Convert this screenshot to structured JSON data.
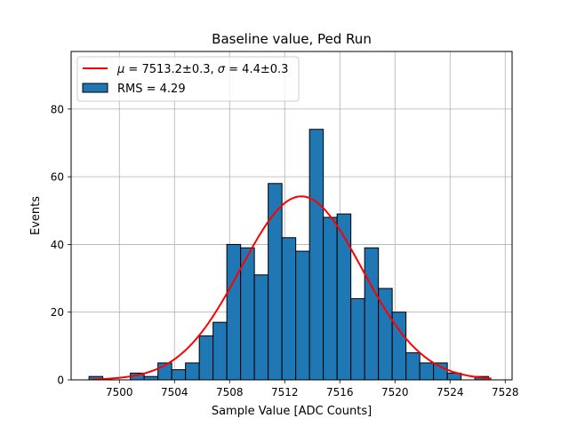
{
  "chart_data": {
    "type": "bar",
    "title": "Baseline value, Ped Run",
    "xlabel": "Sample Value [ADC Counts]",
    "ylabel": "Events",
    "xlim": [
      7496.5,
      7528.5
    ],
    "ylim": [
      0,
      97
    ],
    "xticks": [
      7500,
      7504,
      7508,
      7512,
      7516,
      7520,
      7524,
      7528
    ],
    "yticks": [
      0,
      20,
      40,
      60,
      80
    ],
    "grid": true,
    "legend_position": "top-left",
    "colors": {
      "bars": "#1f77b4",
      "bar_edge": "#000000",
      "fit": "#ff0000",
      "grid": "#b0b0b0"
    },
    "histogram": {
      "name": "RMS = 4.29",
      "bin_width": 1.0,
      "bin_left_edges": [
        7497.8,
        7498.8,
        7499.8,
        7500.8,
        7501.8,
        7502.8,
        7503.8,
        7504.8,
        7505.8,
        7506.8,
        7507.8,
        7508.8,
        7509.8,
        7510.8,
        7511.8,
        7512.8,
        7513.8,
        7514.8,
        7515.8,
        7516.8,
        7517.8,
        7518.8,
        7519.8,
        7520.8,
        7521.8,
        7522.8,
        7523.8,
        7524.8,
        7525.8,
        7526.8
      ],
      "counts": [
        1,
        0,
        0,
        2,
        1,
        5,
        3,
        5,
        13,
        17,
        40,
        39,
        31,
        58,
        42,
        38,
        74,
        48,
        49,
        24,
        39,
        27,
        20,
        8,
        5,
        5,
        2,
        0,
        1,
        0
      ]
    },
    "fit": {
      "name": "μ = 7513.2±0.3, σ = 4.4±0.3",
      "name_mu": "μ",
      "name_sigma": "σ",
      "name_mu_value": " = 7513.2±0.3, ",
      "name_sigma_value": " = 4.4±0.3",
      "mu": 7513.2,
      "sigma": 4.4,
      "amplitude": 54.2,
      "x_range": [
        7498,
        7527
      ]
    }
  }
}
